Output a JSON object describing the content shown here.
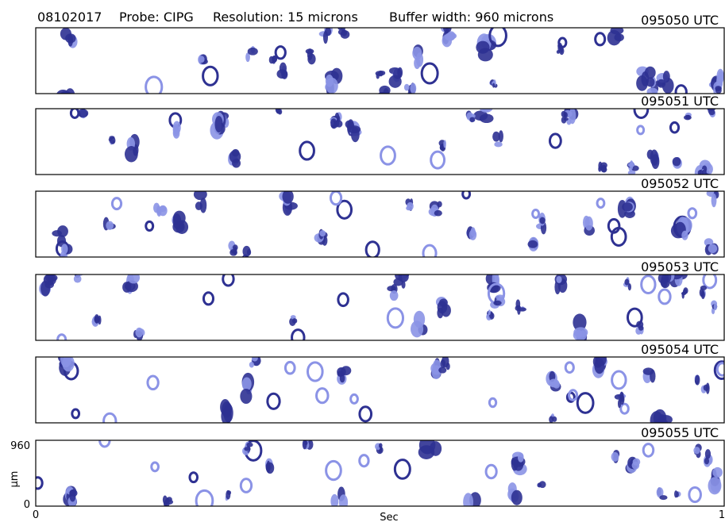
{
  "header": {
    "date": "08102017",
    "probe": "Probe: CIPG",
    "resolution": "Resolution: 15 microns",
    "buffer_width": "Buffer width: 960 microns"
  },
  "panels": [
    {
      "time": "095050 UTC"
    },
    {
      "time": "095051 UTC"
    },
    {
      "time": "095052 UTC"
    },
    {
      "time": "095053 UTC"
    },
    {
      "time": "095054 UTC"
    },
    {
      "time": "095055 UTC"
    }
  ],
  "axes": {
    "y_top": "960",
    "y_label": "µm",
    "y_bottom": "0",
    "x_left": "0",
    "x_label": "Sec",
    "x_right": "1"
  }
}
